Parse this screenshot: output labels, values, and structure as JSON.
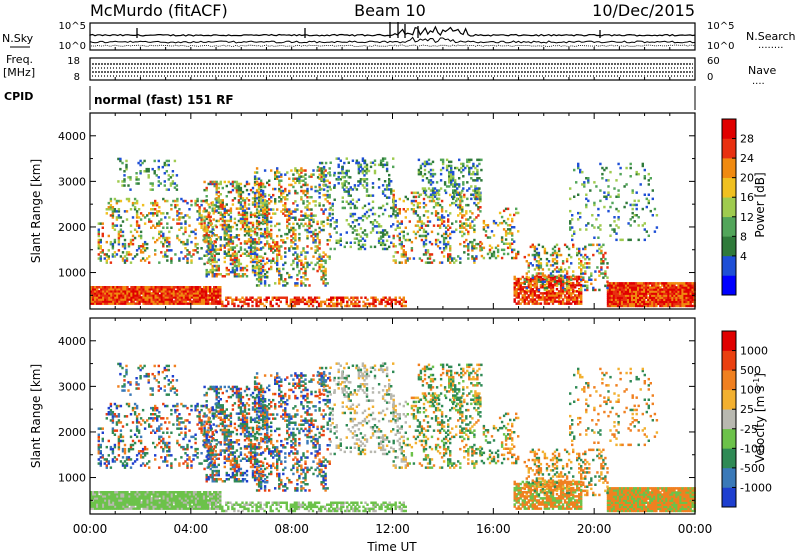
{
  "header": {
    "station": "McMurdo (fitACF)",
    "beam": "Beam 10",
    "date": "10/Dec/2015"
  },
  "top_panel": {
    "left_label": "N.Sky",
    "left_ticks": [
      "10^5",
      "10^0"
    ],
    "right_label": "N.Search",
    "right_ticks": [
      "10^5",
      "10^0"
    ],
    "right_dots": "........"
  },
  "freq_panel": {
    "left_label_1": "Freq.",
    "left_label_2": "[MHz]",
    "left_ticks": [
      "18",
      "8"
    ],
    "right_label": "Nave",
    "right_ticks": [
      "60",
      "0"
    ],
    "right_dots": "...."
  },
  "cpid_panel": {
    "label": "CPID",
    "text": "normal (fast) 151 RF"
  },
  "chart_data": [
    {
      "type": "heatmap",
      "name": "power",
      "ylabel": "Slant Range [km]",
      "ylim": [
        200,
        4500
      ],
      "yticks": [
        "4000",
        "3000",
        "2000",
        "1000"
      ],
      "colorbar_label": "Power [dB]",
      "colorbar_ticks": [
        "28",
        "24",
        "20",
        "16",
        "12",
        "8",
        "4"
      ],
      "colors": [
        "#0000ff",
        "#1e4fd6",
        "#2f7a3a",
        "#52a55a",
        "#9fcb4f",
        "#f0c020",
        "#f08a10",
        "#e83010",
        "#e00000"
      ]
    },
    {
      "type": "heatmap",
      "name": "velocity",
      "ylabel": "Slant Range [km]",
      "ylim": [
        200,
        4500
      ],
      "yticks": [
        "4000",
        "3000",
        "2000",
        "1000"
      ],
      "colorbar_label": "Velocity [m s",
      "colorbar_label_sup": "-1",
      "colorbar_label_end": "]",
      "colorbar_ticks": [
        "1000",
        "500",
        "100",
        "25",
        "-25",
        "-100",
        "-500",
        "-1000"
      ],
      "colors": [
        "#1e3fcf",
        "#3a79b8",
        "#2f8a55",
        "#6cc24a",
        "#b8b8b0",
        "#f2b030",
        "#f08020",
        "#ea4010",
        "#e00000"
      ],
      "xlabel": "Time UT",
      "xticks": [
        "00:00",
        "04:00",
        "08:00",
        "12:00",
        "16:00",
        "20:00",
        "00:00"
      ]
    }
  ]
}
